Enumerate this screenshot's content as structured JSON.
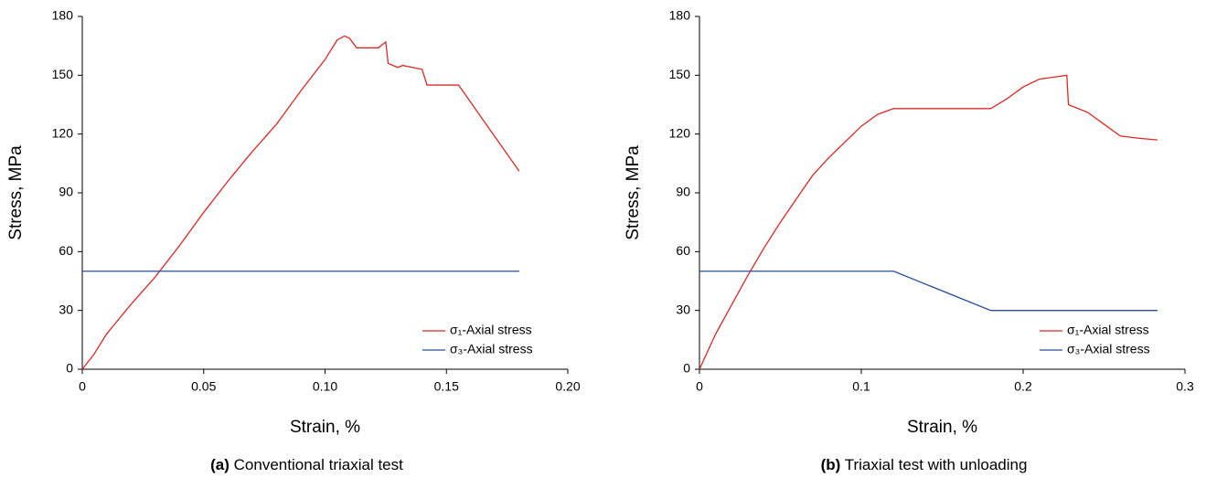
{
  "chart_data": [
    {
      "type": "line",
      "xlabel": "Strain, %",
      "ylabel": "Stress, MPa",
      "caption_label": "(a)",
      "caption": "Conventional triaxial test",
      "xlim": [
        0,
        0.2
      ],
      "xticks": [
        0,
        0.05,
        {
          "value": 0.1,
          "label": "0.10"
        },
        0.15,
        {
          "value": 0.2,
          "label": "0.20"
        }
      ],
      "ylim": [
        0,
        180
      ],
      "yticks": [
        0,
        30,
        60,
        90,
        120,
        150,
        180
      ],
      "legend": "lower right",
      "series": [
        {
          "name": "σ₁-Axial stress",
          "color": "#d62b27",
          "x": [
            0,
            0.005,
            0.01,
            0.02,
            0.03,
            0.04,
            0.05,
            0.06,
            0.07,
            0.08,
            0.09,
            0.1,
            0.105,
            0.108,
            0.11,
            0.113,
            0.122,
            0.125,
            0.126,
            0.13,
            0.132,
            0.14,
            0.142,
            0.15,
            0.155,
            0.18
          ],
          "values": [
            0,
            8,
            18,
            33,
            47,
            63,
            80,
            96,
            111,
            125,
            142,
            158,
            168,
            170,
            169,
            164,
            164,
            167,
            156,
            154,
            155,
            153,
            145,
            145,
            145,
            101
          ]
        },
        {
          "name": "σ₃-Axial stress",
          "color": "#2b4c9b",
          "x": [
            0,
            0.18
          ],
          "values": [
            50,
            50
          ]
        }
      ]
    },
    {
      "type": "line",
      "xlabel": "Strain, %",
      "ylabel": "Stress, MPa",
      "caption_label": "(b)",
      "caption": "Triaxial test with unloading",
      "xlim": [
        0,
        0.3
      ],
      "xticks": [
        0,
        0.1,
        0.2,
        0.3
      ],
      "ylim": [
        0,
        180
      ],
      "yticks": [
        0,
        30,
        60,
        90,
        120,
        150,
        180
      ],
      "legend": "lower right",
      "series": [
        {
          "name": "σ₁-Axial stress",
          "color": "#d62b27",
          "x": [
            0,
            0.01,
            0.02,
            0.03,
            0.04,
            0.05,
            0.06,
            0.07,
            0.08,
            0.09,
            0.1,
            0.11,
            0.12,
            0.18,
            0.19,
            0.2,
            0.21,
            0.227,
            0.228,
            0.24,
            0.25,
            0.26,
            0.27,
            0.283
          ],
          "values": [
            0,
            18,
            33,
            48,
            62,
            75,
            87,
            99,
            108,
            116,
            124,
            130,
            133,
            133,
            138,
            144,
            148,
            150,
            135,
            131,
            125,
            119,
            118,
            117
          ]
        },
        {
          "name": "σ₃-Axial stress",
          "color": "#2b4c9b",
          "x": [
            0,
            0.12,
            0.18,
            0.283
          ],
          "values": [
            50,
            50,
            30,
            30
          ]
        }
      ]
    }
  ]
}
